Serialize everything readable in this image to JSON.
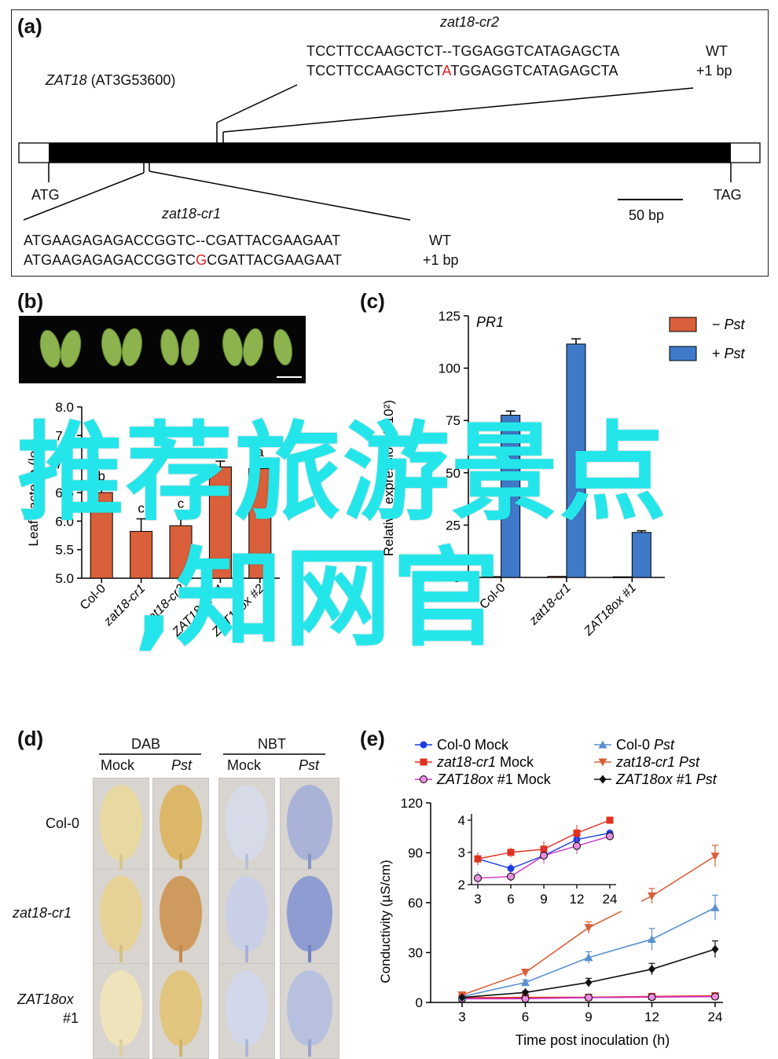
{
  "panels": {
    "a": {
      "letter": "(a)",
      "gene_name": "ZAT18",
      "gene_id": " (AT3G53600)",
      "cr2": {
        "title": "zat18-cr2",
        "wt_seq": "TCCTTCCAAGCTCT--TGGAGGTCATAGAGCTA",
        "mut_prefix": "TCCTTCCAAGCTCT",
        "mut_insert": "A",
        "mut_suffix": "TGGAGGTCATAGAGCTA",
        "wt_label": "WT",
        "mut_label": "+1 bp"
      },
      "cr1": {
        "title": "zat18-cr1",
        "wt_seq": "ATGAAGAGAGACCGGTC--CGATTACGAAGAAT",
        "mut_prefix": "ATGAAGAGAGACCGGTC",
        "mut_insert": "G",
        "mut_suffix": "CGATTACGAAGAAT",
        "wt_label": "WT",
        "mut_label": "+1 bp"
      },
      "atg": "ATG",
      "tag": "TAG",
      "scale_bar": "50 bp"
    },
    "b": {
      "letter": "(b)",
      "ylabel": "Leaf bacteria (log",
      "ylabel_tail": ")",
      "yticks": [
        "8.0",
        "7.5",
        "7.0",
        "6.5",
        "6.0",
        "5.5",
        "5.0"
      ]
    },
    "c": {
      "letter": "(c)",
      "gene": "PR1",
      "ylabel": "Relative expression (×10²)",
      "yticks": [
        "125",
        "100",
        "75",
        "50",
        "25",
        "0"
      ]
    },
    "d": {
      "letter": "(d)",
      "dab": "DAB",
      "nbt": "NBT",
      "mock": "Mock",
      "pst": "Pst",
      "rows": [
        "Col-0",
        "zat18-cr1",
        "ZAT18ox",
        "#1"
      ]
    },
    "e": {
      "letter": "(e)",
      "ylabel": "Conductivity (µS/cm)",
      "xlabel": "Time post inoculation (h)"
    }
  },
  "chart_b": {
    "type": "bar",
    "categories": [
      "Col-0",
      "zat18-cr1",
      "zat18-cr2",
      "ZAT18ox #1",
      "ZAT18ox #2"
    ],
    "values": [
      6.5,
      5.82,
      5.92,
      6.95,
      6.92
    ],
    "errors": [
      0.1,
      0.22,
      0.2,
      0.1,
      0.1
    ],
    "letters": [
      "b",
      "c",
      "c",
      "a",
      "a"
    ],
    "ylim": [
      5.0,
      8.0
    ],
    "color": "#d9603b"
  },
  "chart_c": {
    "type": "bar",
    "categories": [
      "Col-0",
      "zat18-cr1",
      "ZAT18ox #1"
    ],
    "series": [
      {
        "name": "− Pst",
        "color": "#d9603b",
        "values": [
          0.4,
          0.5,
          0.3
        ]
      },
      {
        "name": "+ Pst",
        "color": "#3f79c9",
        "values": [
          77.5,
          111.5,
          21.5
        ]
      }
    ],
    "errors": [
      2.0,
      2.5,
      0.8
    ],
    "ylim": [
      0,
      125
    ],
    "legend": "top-right"
  },
  "chart_e": {
    "type": "line",
    "x": [
      3,
      6,
      9,
      12,
      24
    ],
    "xtick_labels": [
      "3",
      "6",
      "9",
      "12",
      "24"
    ],
    "yticks": [
      "120",
      "90",
      "60",
      "30",
      "0"
    ],
    "ylim": [
      0,
      120
    ],
    "series": [
      {
        "name": "Col-0 Mock",
        "name_prefix": "Col-0",
        "name_suffix": " Mock",
        "italic": "none",
        "color": "#1f3fe0",
        "marker": "circle",
        "values": [
          2.8,
          2.5,
          2.9,
          3.4,
          3.6
        ]
      },
      {
        "name": "zat18-cr1 Mock",
        "name_prefix": "zat18-cr1",
        "name_suffix": " Mock",
        "italic": "prefix",
        "color": "#e03020",
        "marker": "square",
        "values": [
          2.8,
          3.0,
          3.1,
          3.6,
          4.0
        ]
      },
      {
        "name": "ZAT18ox #1 Mock",
        "name_prefix": "ZAT18ox",
        "name_suffix": " #1 Mock",
        "italic": "prefix",
        "color": "#d030c8",
        "marker": "circle-open",
        "values": [
          2.2,
          2.25,
          2.9,
          3.2,
          3.5
        ]
      },
      {
        "name": "Col-0 Pst",
        "name_prefix": "Col-0 ",
        "name_suffix": "Pst",
        "italic": "suffix",
        "color": "#5a8fd0",
        "marker": "triangle-up",
        "values": [
          3.5,
          12,
          27,
          38,
          57
        ]
      },
      {
        "name": "zat18-cr1 Pst",
        "name_prefix": "zat18-cr1 ",
        "name_suffix": "Pst",
        "italic": "both",
        "color": "#d9603b",
        "marker": "triangle-down",
        "values": [
          4.5,
          18,
          45,
          64,
          88
        ]
      },
      {
        "name": "ZAT18ox #1 Pst",
        "name_prefix": "ZAT18ox",
        "name_suffix": " #1 Pst",
        "italic": "prefix-pst",
        "color": "#111111",
        "marker": "diamond",
        "values": [
          3,
          6,
          12,
          20,
          32
        ]
      }
    ],
    "errors": [
      [
        0.1,
        0.1,
        0.1,
        0.1,
        0.1
      ],
      [
        0.1,
        0.1,
        0.1,
        0.1,
        0.1
      ],
      [
        0.1,
        0.1,
        0.1,
        0.1,
        0.1
      ],
      [
        0.5,
        1.5,
        3.5,
        6.5,
        7.5
      ],
      [
        0.8,
        2.0,
        3.5,
        4.5,
        6.5
      ],
      [
        0.5,
        0.8,
        2.5,
        3.5,
        5.0
      ]
    ],
    "inset": {
      "yticks": [
        "4",
        "3",
        "2"
      ],
      "ylim": [
        2,
        4
      ],
      "series_indices": [
        0,
        1,
        2
      ],
      "errors": [
        0.2,
        0.15,
        0.25,
        0.25,
        0.1
      ]
    }
  },
  "overlay": {
    "line1": "推荐旅游景点",
    "line2": ",知网官"
  }
}
